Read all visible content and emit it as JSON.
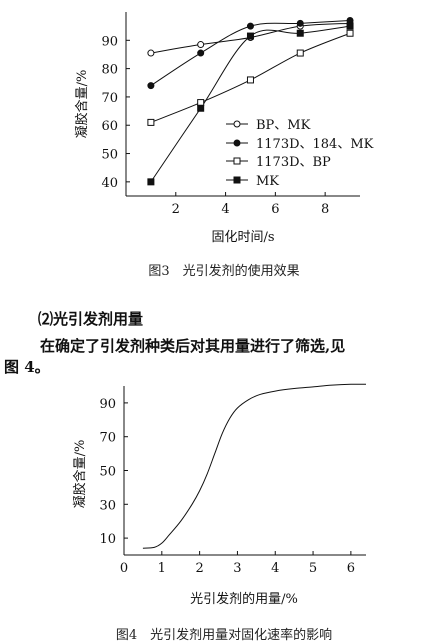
{
  "figure3": {
    "caption": "图3　光引发剂的使用效果",
    "chart_data": {
      "type": "line",
      "xlabel": "固化时间/s",
      "ylabel": "凝胶含量/%",
      "xlim": [
        0,
        9.4
      ],
      "ylim": [
        35,
        100
      ],
      "xticks": [
        2,
        4,
        6,
        8
      ],
      "yticks": [
        40,
        50,
        60,
        70,
        80,
        90
      ],
      "legend": "right",
      "series": [
        {
          "name": "BP、MK",
          "marker": "open-circle",
          "x": [
            1,
            3,
            5,
            7,
            9
          ],
          "y": [
            85.5,
            88.5,
            91,
            95,
            96
          ]
        },
        {
          "name": "1173D、184、MK",
          "marker": "filled-circle",
          "x": [
            1,
            3,
            5,
            7,
            9
          ],
          "y": [
            74,
            85.5,
            95,
            96,
            97
          ]
        },
        {
          "name": "1173D、BP",
          "marker": "open-square",
          "x": [
            1,
            3,
            5,
            7,
            9
          ],
          "y": [
            61,
            68,
            76,
            85.5,
            92.5
          ]
        },
        {
          "name": "MK",
          "marker": "filled-square",
          "x": [
            1,
            3,
            5,
            7,
            9
          ],
          "y": [
            40,
            66,
            91.5,
            92.5,
            95
          ]
        }
      ]
    }
  },
  "section": {
    "heading": "⑵光引发剂用量",
    "para_line1": "在确定了引发剂种类后对其用量进行了筛选,见",
    "para_line2": "图 4。"
  },
  "figure4": {
    "caption": "图4　光引发剂用量对固化速率的影响",
    "chart_data": {
      "type": "line",
      "xlabel": "光引发剂的用量/%",
      "ylabel": "凝胶含量/%",
      "xlim": [
        0,
        6.4
      ],
      "ylim": [
        0,
        100
      ],
      "xticks": [
        0,
        1,
        2,
        3,
        4,
        5,
        6
      ],
      "yticks": [
        10,
        30,
        50,
        70,
        90
      ],
      "series": [
        {
          "x": [
            0.5,
            0.8,
            1.0,
            1.2,
            1.5,
            1.8,
            2.0,
            2.2,
            2.4,
            2.6,
            2.8,
            3.0,
            3.3,
            3.6,
            4.0,
            4.5,
            5.0,
            5.5,
            6.0,
            6.4
          ],
          "y": [
            4,
            4.5,
            7,
            12,
            20,
            30,
            38,
            48,
            60,
            72,
            81,
            87,
            92,
            95,
            97,
            98.5,
            99.5,
            100.5,
            101,
            101
          ]
        }
      ]
    }
  }
}
